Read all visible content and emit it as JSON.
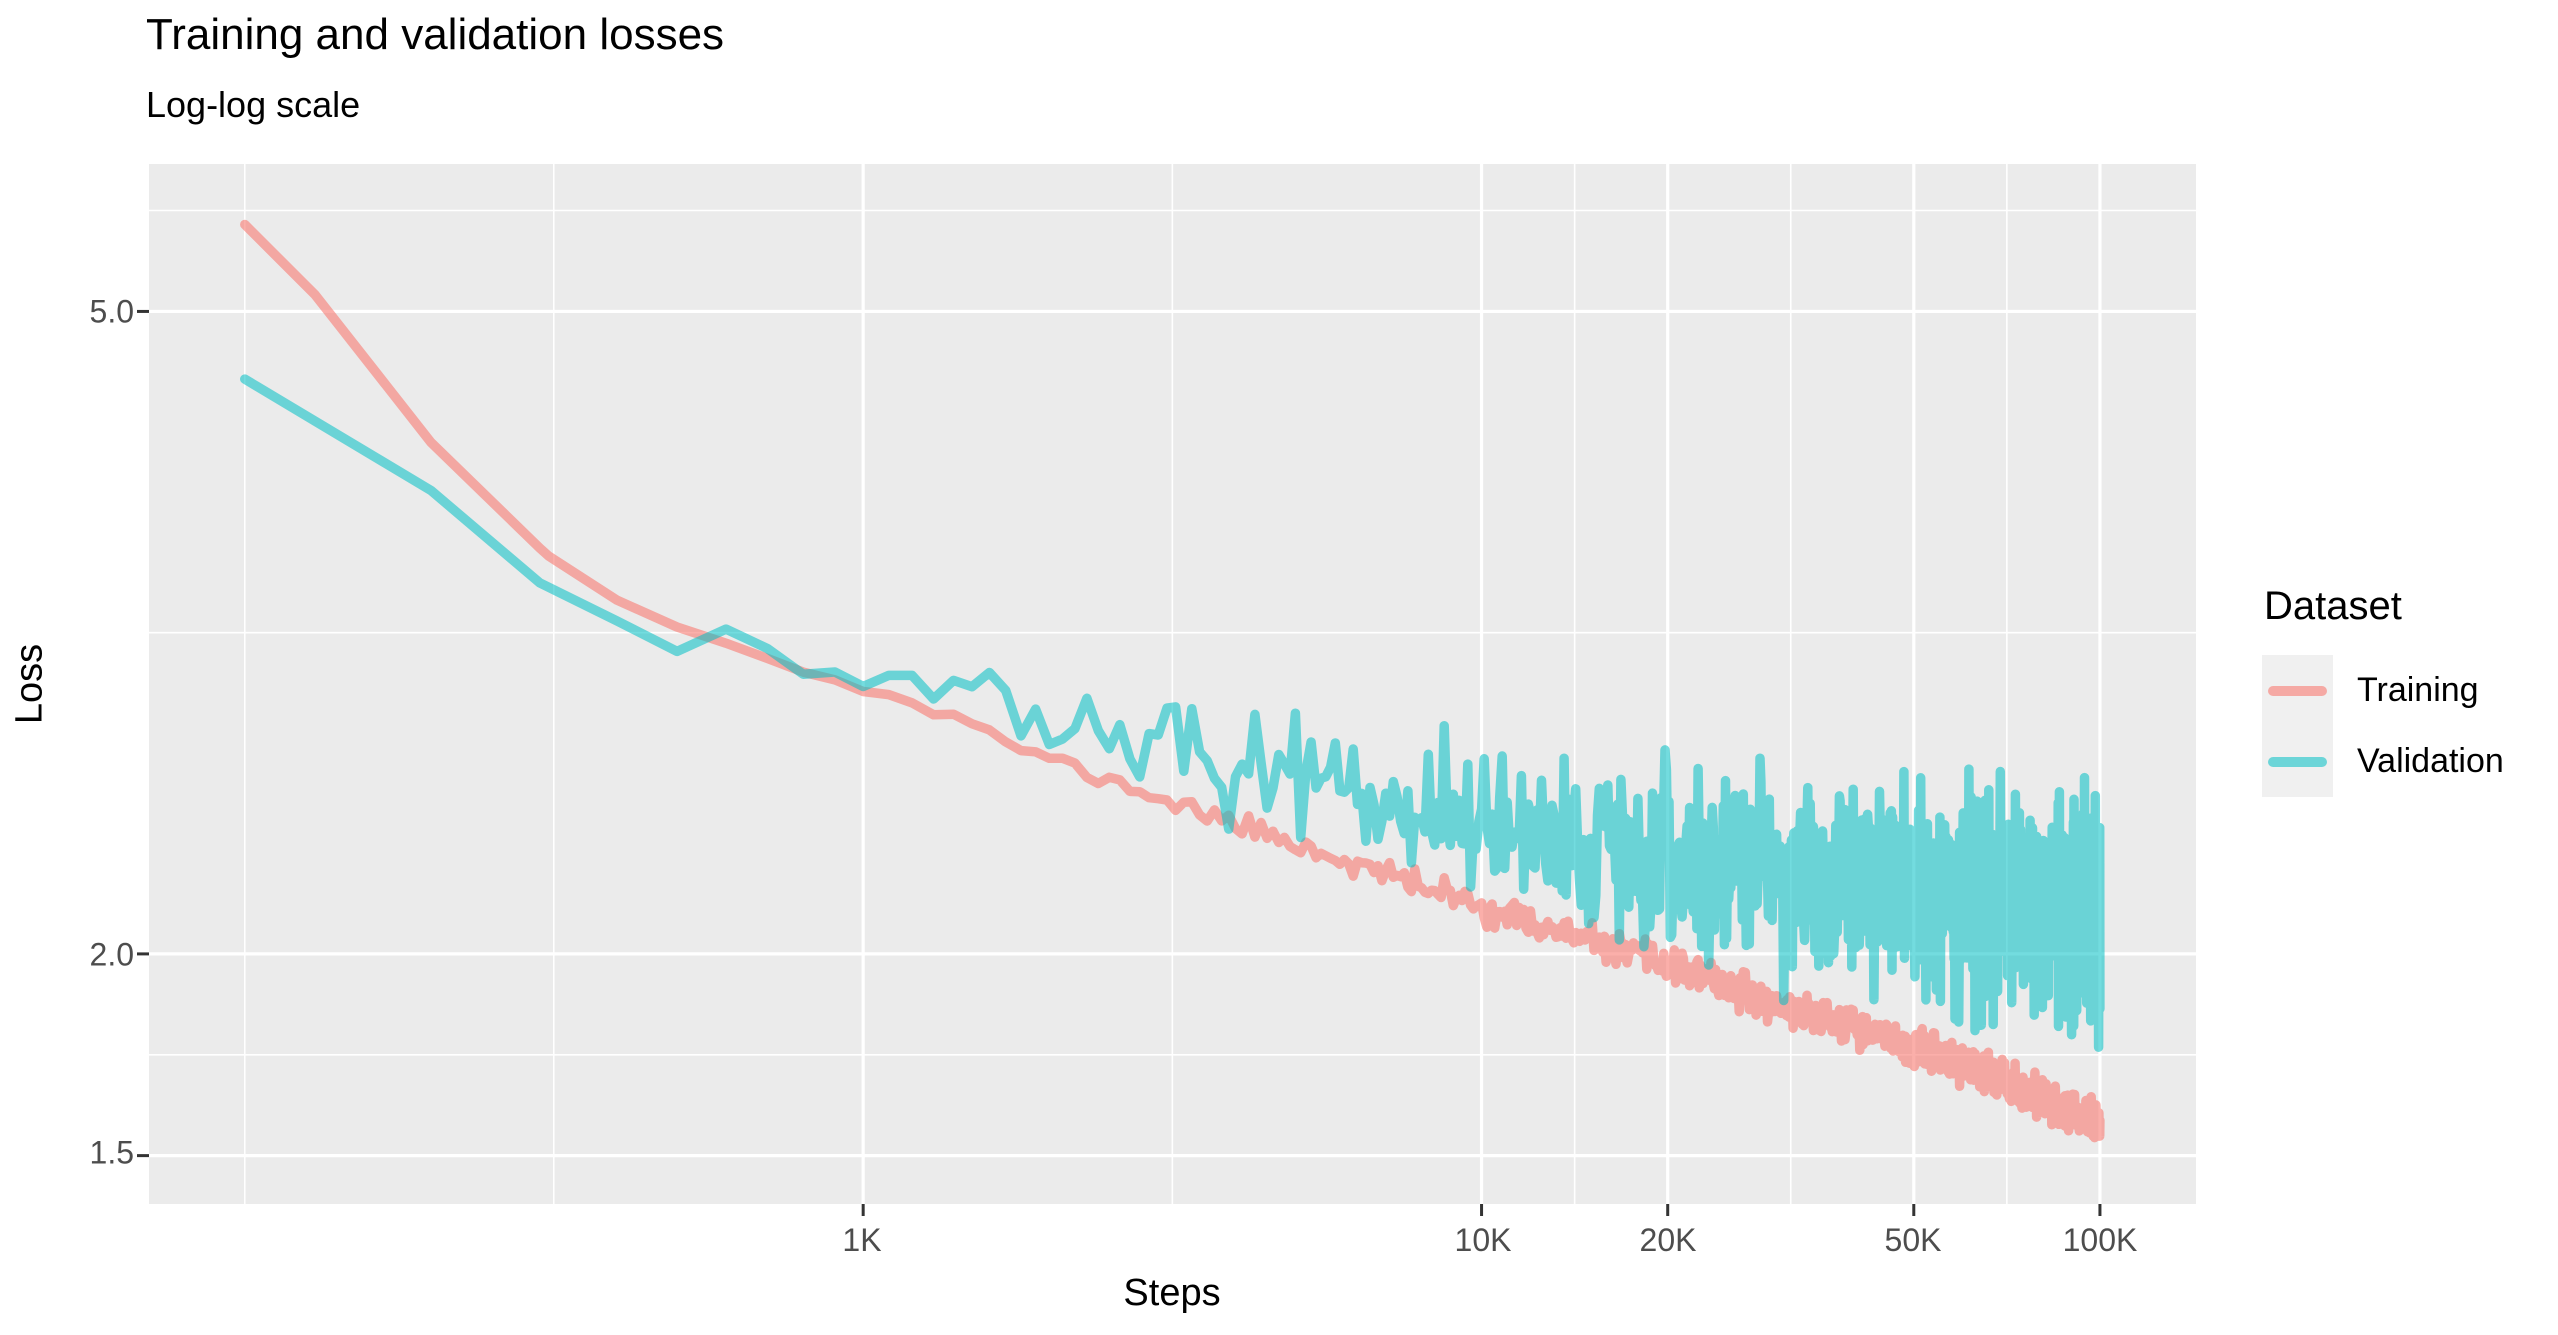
{
  "title": "Training and validation losses",
  "subtitle": "Log-log scale",
  "panel": {
    "background": "#EBEBEB",
    "gridline_color": "#FFFFFF",
    "tick_mark_color": "#333333",
    "tick_label_color": "#4D4D4D"
  },
  "chart_data": {
    "type": "line",
    "title": "Training and validation losses",
    "subtitle": "Log-log scale",
    "xlabel": "Steps",
    "ylabel": "Loss",
    "x_axis": {
      "scale": "log10",
      "range": [
        70,
        143000
      ],
      "ticks": [
        {
          "value": 1000,
          "label": "1K"
        },
        {
          "value": 10000,
          "label": "10K"
        },
        {
          "value": 20000,
          "label": "20K"
        },
        {
          "value": 50000,
          "label": "50K"
        },
        {
          "value": 100000,
          "label": "100K"
        }
      ],
      "minor_gridlines": [
        100,
        316,
        3162,
        14142,
        31623,
        70711
      ]
    },
    "y_axis": {
      "scale": "log10",
      "range": [
        1.4,
        6.17
      ],
      "ticks": [
        {
          "value": 1.5,
          "label": "1.5"
        },
        {
          "value": 2.0,
          "label": "2.0"
        },
        {
          "value": 5.0,
          "label": "5.0"
        }
      ],
      "minor_gridlines": [
        1.732,
        3.162,
        5.774
      ]
    },
    "legend": {
      "title": "Dataset",
      "position": "right",
      "entries": [
        {
          "label": "Training",
          "color": "#F8766D"
        },
        {
          "label": "Validation",
          "color": "#00BFC4"
        }
      ]
    },
    "sampling": {
      "start_step": 100,
      "end_step": 100000,
      "step_interval": 100
    },
    "series": [
      {
        "name": "Training",
        "color": "#F8766D",
        "opacity": 0.58,
        "trend": [
          [
            100,
            5.66
          ],
          [
            130,
            5.12
          ],
          [
            200,
            4.15
          ],
          [
            310,
            3.53
          ],
          [
            400,
            3.31
          ],
          [
            500,
            3.19
          ],
          [
            700,
            3.05
          ],
          [
            900,
            2.95
          ],
          [
            1200,
            2.86
          ],
          [
            1600,
            2.74
          ],
          [
            2000,
            2.64
          ],
          [
            3000,
            2.5
          ],
          [
            5000,
            2.34
          ],
          [
            7000,
            2.24
          ],
          [
            10000,
            2.14
          ],
          [
            14000,
            2.05
          ],
          [
            20000,
            1.97
          ],
          [
            30000,
            1.86
          ],
          [
            40000,
            1.8
          ],
          [
            50000,
            1.75
          ],
          [
            70000,
            1.67
          ],
          [
            100000,
            1.57
          ]
        ],
        "noise_sd_log10": [
          [
            100,
            0
          ],
          [
            600,
            0.0005
          ],
          [
            1000,
            0.0015
          ],
          [
            2000,
            0.0025
          ],
          [
            5000,
            0.0035
          ],
          [
            10000,
            0.0045
          ],
          [
            30000,
            0.005
          ],
          [
            100000,
            0.0055
          ]
        ]
      },
      {
        "name": "Validation",
        "color": "#00BFC4",
        "opacity": 0.55,
        "trend": [
          [
            100,
            4.54
          ],
          [
            200,
            3.88
          ],
          [
            300,
            3.4
          ],
          [
            400,
            3.23
          ],
          [
            500,
            3.15
          ],
          [
            700,
            3.08
          ],
          [
            1000,
            2.96
          ],
          [
            1500,
            2.88
          ],
          [
            2000,
            2.8
          ],
          [
            3000,
            2.69
          ],
          [
            5000,
            2.57
          ],
          [
            7000,
            2.49
          ],
          [
            10000,
            2.42
          ],
          [
            14000,
            2.34
          ],
          [
            20000,
            2.28
          ],
          [
            30000,
            2.23
          ],
          [
            50000,
            2.18
          ],
          [
            70000,
            2.15
          ],
          [
            100000,
            2.12
          ]
        ],
        "noise_sd_log10": [
          [
            100,
            0
          ],
          [
            300,
            0.001
          ],
          [
            500,
            0.004
          ],
          [
            700,
            0.006
          ],
          [
            1000,
            0.009
          ],
          [
            2000,
            0.012
          ],
          [
            4000,
            0.016
          ],
          [
            8000,
            0.02
          ],
          [
            15000,
            0.025
          ],
          [
            30000,
            0.029
          ],
          [
            60000,
            0.031
          ],
          [
            100000,
            0.032
          ]
        ]
      }
    ]
  }
}
